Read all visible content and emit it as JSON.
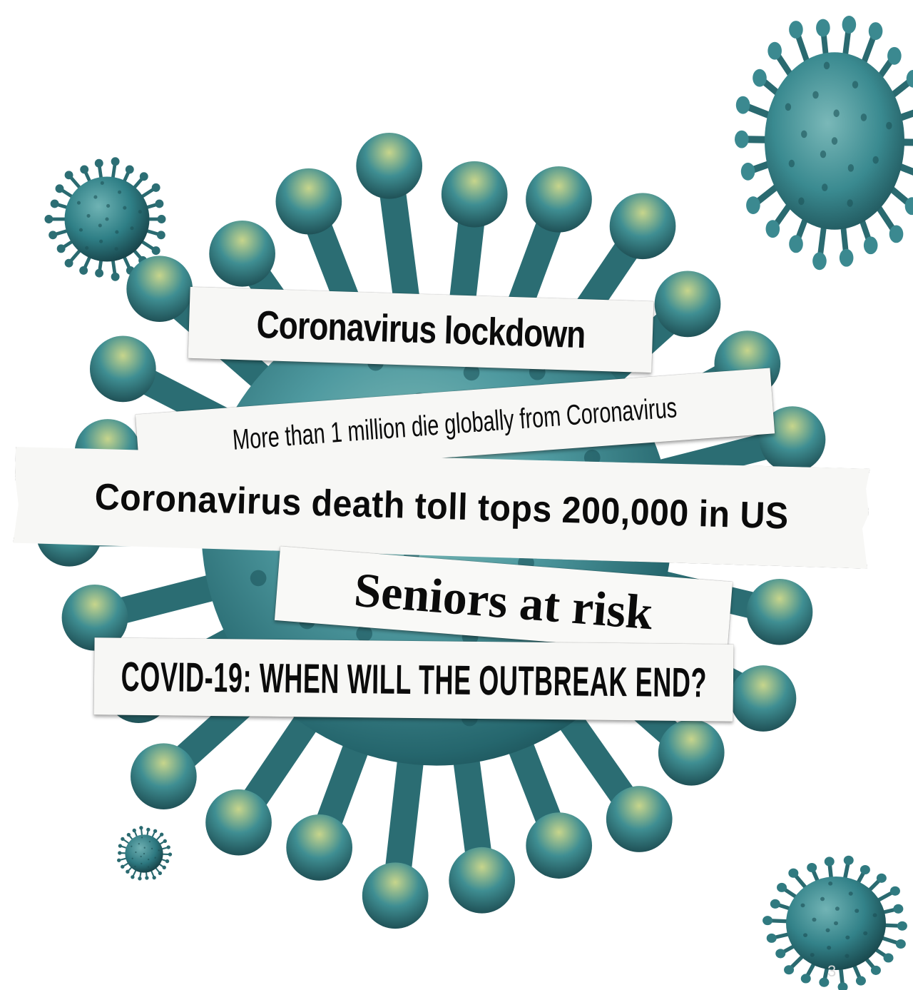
{
  "colors": {
    "virus_body": "#2f7f86",
    "virus_dark": "#17484e",
    "virus_highlight": "#b8c97a",
    "paper": "#f7f7f5",
    "ink": "#0b0b0b"
  },
  "headlines": [
    "Coronavirus lockdown",
    "More than 1 million die globally from Coronavirus",
    "Coronavirus death toll tops 200,000 in US",
    "Seniors at risk",
    "COVID-19: WHEN WILL THE OUTBREAK END?"
  ],
  "page_number": "3"
}
